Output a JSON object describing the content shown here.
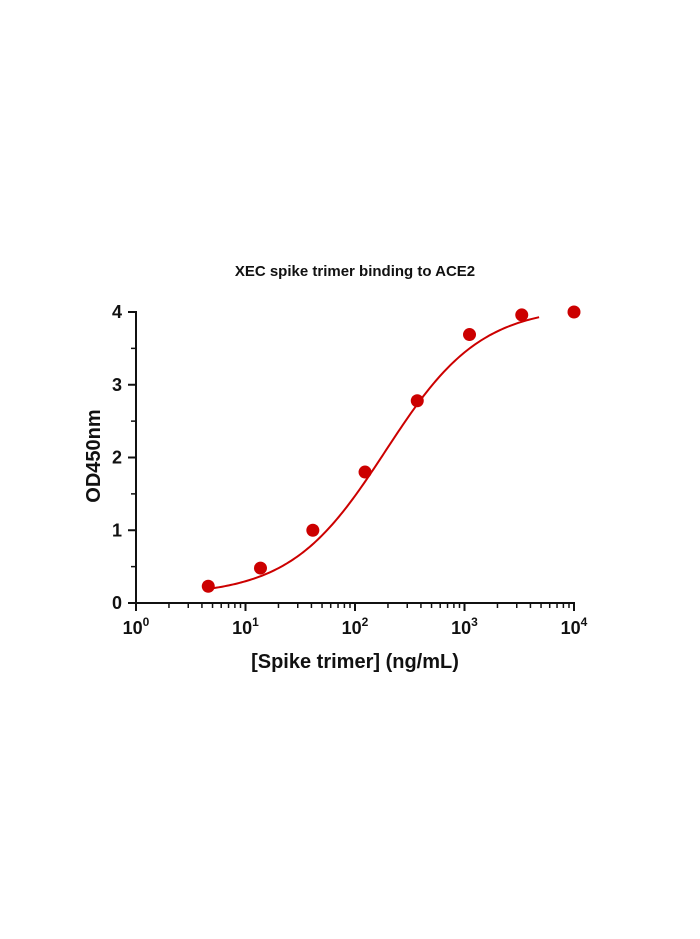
{
  "chart_data": {
    "type": "scatter",
    "title": "XEC spike trimer binding to ACE2",
    "xlabel": "[Spike trimer] (ng/mL)",
    "ylabel": "OD450nm",
    "x_scale": "log",
    "xlim": [
      1,
      10000
    ],
    "ylim": [
      0,
      4
    ],
    "x_ticks": [
      {
        "base": "10",
        "exp": "0"
      },
      {
        "base": "10",
        "exp": "1"
      },
      {
        "base": "10",
        "exp": "2"
      },
      {
        "base": "10",
        "exp": "3"
      },
      {
        "base": "10",
        "exp": "4"
      }
    ],
    "y_ticks": [
      "0",
      "1",
      "2",
      "3",
      "4"
    ],
    "grid": false,
    "color": "#cc0000",
    "series": [
      {
        "x": [
          4.57,
          13.7,
          41.2,
          123.5,
          370.4,
          1111,
          3333,
          10000
        ],
        "y": [
          0.23,
          0.48,
          1.0,
          1.8,
          2.78,
          3.69,
          3.96,
          4.0
        ]
      }
    ],
    "fit": {
      "type": "sigmoid",
      "bottom": 0.1,
      "top": 4.08,
      "ec50": 190,
      "hill": 1.0,
      "x_range": [
        4.57,
        4800
      ]
    }
  }
}
